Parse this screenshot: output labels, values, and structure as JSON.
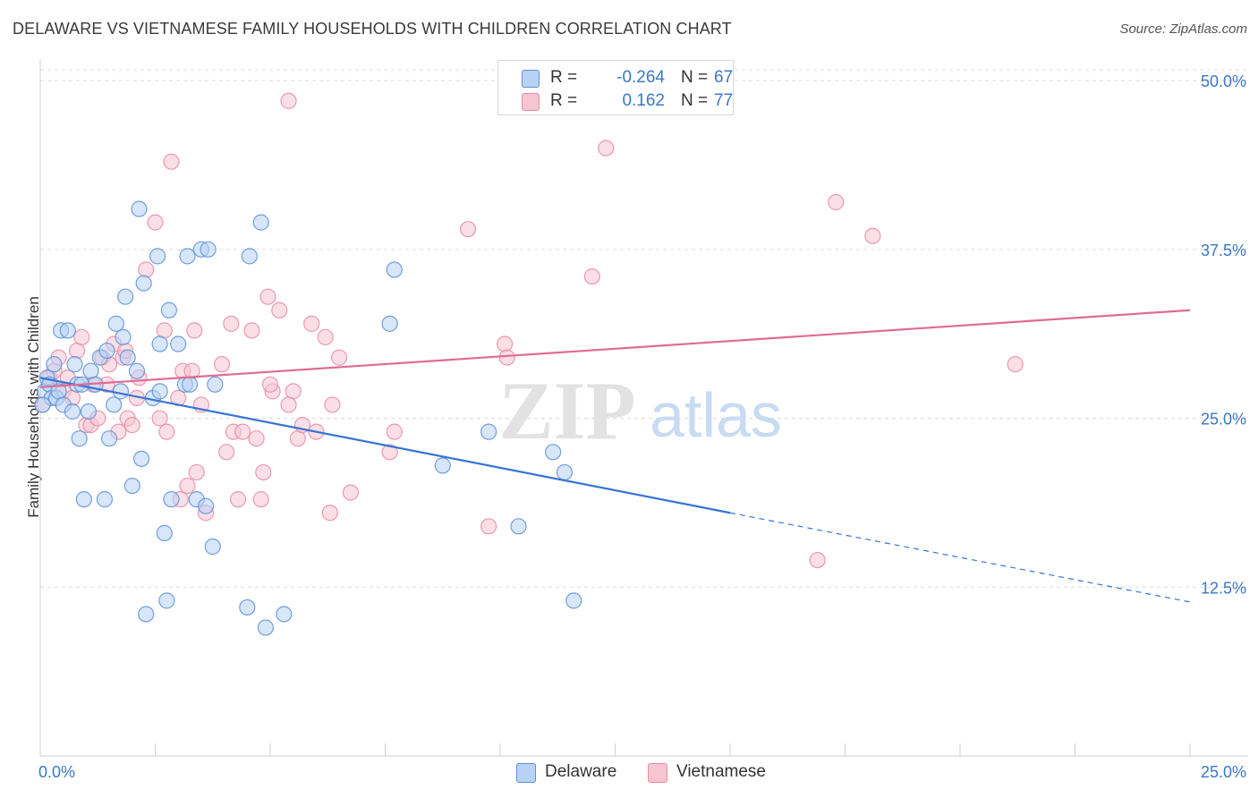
{
  "title": "DELAWARE VS VIETNAMESE FAMILY HOUSEHOLDS WITH CHILDREN CORRELATION CHART",
  "source": "Source: ZipAtlas.com",
  "watermark": {
    "zip": "ZIP",
    "atlas": "atlas"
  },
  "colors": {
    "blue_fill": "#b8d2f5",
    "blue_stroke": "#5b8fd6",
    "blue_line": "#3574d4",
    "pink_fill": "#f7c4d2",
    "pink_stroke": "#e88aa6",
    "pink_line": "#e06b93",
    "tick_label": "#3b77c7",
    "grid": "#dcdcdc"
  },
  "legend": {
    "series": [
      {
        "name": "Delaware",
        "r_label": "R =",
        "r_value": "-0.264",
        "n_label": "N =",
        "n_value": "67"
      },
      {
        "name": "Vietnamese",
        "r_label": "R =",
        "r_value": "0.162",
        "n_label": "N =",
        "n_value": "77"
      }
    ]
  },
  "chart_data": {
    "type": "scatter",
    "title": "DELAWARE VS VIETNAMESE FAMILY HOUSEHOLDS WITH CHILDREN CORRELATION CHART",
    "xlabel": "",
    "ylabel": "Family Households with Children",
    "xlim": [
      0,
      25
    ],
    "ylim": [
      0,
      51
    ],
    "x_tick_labels": [
      "0.0%",
      "25.0%"
    ],
    "y_ticks": [
      12.5,
      25.0,
      37.5,
      50.0
    ],
    "y_tick_labels": [
      "12.5%",
      "25.0%",
      "37.5%",
      "50.0%"
    ],
    "grid": true,
    "series": [
      {
        "name": "Delaware",
        "points": [
          [
            0.1,
            27.0
          ],
          [
            0.15,
            28.0
          ],
          [
            0.2,
            27.5
          ],
          [
            0.25,
            26.5
          ],
          [
            0.3,
            29.0
          ],
          [
            0.35,
            26.5
          ],
          [
            0.4,
            27.0
          ],
          [
            0.45,
            31.5
          ],
          [
            0.5,
            26.0
          ],
          [
            0.6,
            31.5
          ],
          [
            0.7,
            25.5
          ],
          [
            0.75,
            29.0
          ],
          [
            0.8,
            27.5
          ],
          [
            0.85,
            23.5
          ],
          [
            0.9,
            27.5
          ],
          [
            0.95,
            19.0
          ],
          [
            1.05,
            25.5
          ],
          [
            1.1,
            28.5
          ],
          [
            1.2,
            27.5
          ],
          [
            1.3,
            29.5
          ],
          [
            1.4,
            19.0
          ],
          [
            1.45,
            30.0
          ],
          [
            1.5,
            23.5
          ],
          [
            1.6,
            26.0
          ],
          [
            1.65,
            32.0
          ],
          [
            1.75,
            27.0
          ],
          [
            1.8,
            31.0
          ],
          [
            1.85,
            34.0
          ],
          [
            1.9,
            29.5
          ],
          [
            2.0,
            20.0
          ],
          [
            2.1,
            28.5
          ],
          [
            2.15,
            40.5
          ],
          [
            2.2,
            22.0
          ],
          [
            2.25,
            35.0
          ],
          [
            2.3,
            10.5
          ],
          [
            2.45,
            26.5
          ],
          [
            2.55,
            37.0
          ],
          [
            2.6,
            30.5
          ],
          [
            2.6,
            27.0
          ],
          [
            2.7,
            16.5
          ],
          [
            2.75,
            11.5
          ],
          [
            2.8,
            33.0
          ],
          [
            2.85,
            19.0
          ],
          [
            3.0,
            30.5
          ],
          [
            3.15,
            27.5
          ],
          [
            3.2,
            37.0
          ],
          [
            3.25,
            27.5
          ],
          [
            3.4,
            19.0
          ],
          [
            3.5,
            37.5
          ],
          [
            3.6,
            18.5
          ],
          [
            3.65,
            37.5
          ],
          [
            3.75,
            15.5
          ],
          [
            3.8,
            27.5
          ],
          [
            4.5,
            11.0
          ],
          [
            4.55,
            37.0
          ],
          [
            4.8,
            39.5
          ],
          [
            4.9,
            9.5
          ],
          [
            5.3,
            10.5
          ],
          [
            7.6,
            32.0
          ],
          [
            7.7,
            36.0
          ],
          [
            8.75,
            21.5
          ],
          [
            9.75,
            24.0
          ],
          [
            10.4,
            17.0
          ],
          [
            11.15,
            22.5
          ],
          [
            11.4,
            21.0
          ],
          [
            11.6,
            11.5
          ],
          [
            0.05,
            26.0
          ]
        ]
      },
      {
        "name": "Vietnamese",
        "points": [
          [
            0.05,
            26.0
          ],
          [
            0.2,
            28.0
          ],
          [
            0.3,
            28.5
          ],
          [
            0.4,
            29.5
          ],
          [
            0.5,
            27.0
          ],
          [
            0.6,
            28.0
          ],
          [
            0.7,
            26.5
          ],
          [
            0.8,
            30.0
          ],
          [
            0.9,
            31.0
          ],
          [
            1.0,
            24.5
          ],
          [
            1.1,
            24.5
          ],
          [
            1.15,
            27.5
          ],
          [
            1.25,
            25.0
          ],
          [
            1.35,
            29.5
          ],
          [
            1.45,
            27.5
          ],
          [
            1.5,
            29.0
          ],
          [
            1.6,
            30.5
          ],
          [
            1.7,
            24.0
          ],
          [
            1.8,
            29.5
          ],
          [
            1.85,
            30.0
          ],
          [
            1.9,
            25.0
          ],
          [
            2.0,
            24.5
          ],
          [
            2.1,
            26.5
          ],
          [
            2.15,
            28.0
          ],
          [
            2.3,
            36.0
          ],
          [
            2.5,
            39.5
          ],
          [
            2.6,
            25.0
          ],
          [
            2.7,
            31.5
          ],
          [
            2.75,
            24.0
          ],
          [
            2.85,
            44.0
          ],
          [
            3.0,
            26.5
          ],
          [
            3.05,
            19.0
          ],
          [
            3.1,
            28.5
          ],
          [
            3.2,
            20.0
          ],
          [
            3.3,
            28.5
          ],
          [
            3.35,
            31.5
          ],
          [
            3.4,
            21.0
          ],
          [
            3.5,
            26.0
          ],
          [
            3.6,
            18.0
          ],
          [
            3.95,
            29.0
          ],
          [
            4.05,
            22.5
          ],
          [
            4.15,
            32.0
          ],
          [
            4.2,
            24.0
          ],
          [
            4.3,
            19.0
          ],
          [
            4.4,
            24.0
          ],
          [
            4.6,
            31.5
          ],
          [
            4.7,
            23.5
          ],
          [
            4.8,
            19.0
          ],
          [
            4.85,
            21.0
          ],
          [
            4.95,
            34.0
          ],
          [
            5.05,
            27.0
          ],
          [
            5.2,
            33.0
          ],
          [
            5.4,
            48.5
          ],
          [
            5.5,
            27.0
          ],
          [
            5.6,
            23.5
          ],
          [
            5.7,
            24.5
          ],
          [
            5.9,
            32.0
          ],
          [
            6.0,
            24.0
          ],
          [
            6.2,
            31.0
          ],
          [
            6.3,
            18.0
          ],
          [
            6.35,
            26.0
          ],
          [
            6.5,
            29.5
          ],
          [
            6.75,
            19.5
          ],
          [
            7.6,
            22.5
          ],
          [
            7.7,
            24.0
          ],
          [
            9.3,
            39.0
          ],
          [
            9.75,
            17.0
          ],
          [
            10.1,
            30.5
          ],
          [
            10.15,
            29.5
          ],
          [
            12.0,
            35.5
          ],
          [
            12.3,
            45.0
          ],
          [
            16.9,
            14.5
          ],
          [
            17.3,
            41.0
          ],
          [
            18.1,
            38.5
          ],
          [
            21.2,
            29.0
          ],
          [
            5.0,
            27.5
          ],
          [
            5.4,
            26.0
          ]
        ]
      }
    ],
    "trendlines": [
      {
        "series": "Delaware",
        "x_start": 0,
        "y_start": 28.0,
        "x_solid_end": 15.0,
        "y_solid_end": 18.0,
        "x_end": 25,
        "y_end": 11.4,
        "dashed_beyond": true
      },
      {
        "series": "Vietnamese",
        "x_start": 0,
        "y_start": 27.3,
        "x_end": 25,
        "y_end": 33.0,
        "dashed_beyond": false
      }
    ]
  }
}
